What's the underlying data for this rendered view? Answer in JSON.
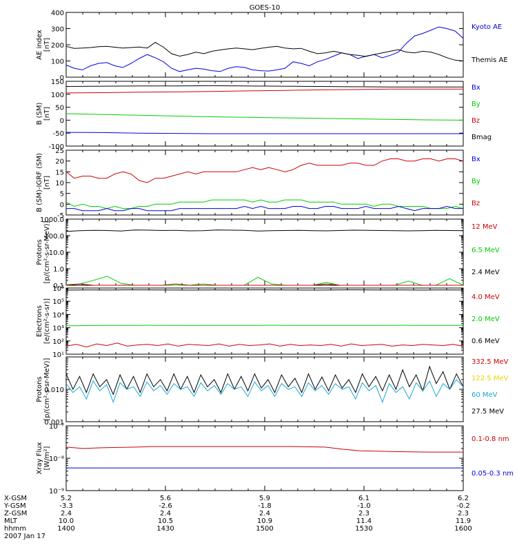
{
  "title": "GOES-10",
  "colors": {
    "black": "#000000",
    "blue": "#0000dd",
    "red": "#cc0000",
    "green": "#00cc00",
    "yellow": "#e6d600",
    "cyan": "#1aa7d6"
  },
  "chart_data": [
    {
      "type": "line",
      "ylabel": [
        "AE index",
        "[nT]"
      ],
      "yscale": "linear",
      "ylim": [
        0,
        400
      ],
      "yticks": [
        0,
        100,
        200,
        300,
        400
      ],
      "ytick_labels": [
        "0",
        "100",
        "200",
        "300",
        "400"
      ],
      "legend": [
        {
          "label": "Kyoto AE",
          "color": "#0000dd"
        },
        {
          "label": "Themis AE",
          "color": "#000000"
        }
      ],
      "series": [
        {
          "name": "Kyoto AE",
          "color": "#0000dd",
          "values": [
            75,
            55,
            45,
            70,
            85,
            90,
            70,
            60,
            85,
            115,
            140,
            120,
            95,
            55,
            35,
            45,
            55,
            50,
            40,
            35,
            55,
            65,
            60,
            45,
            40,
            38,
            45,
            55,
            95,
            85,
            70,
            95,
            110,
            130,
            150,
            140,
            115,
            130,
            140,
            120,
            135,
            155,
            210,
            255,
            270,
            290,
            310,
            300,
            285,
            240
          ]
        },
        {
          "name": "Themis AE",
          "color": "#000000",
          "values": [
            190,
            178,
            180,
            183,
            188,
            190,
            185,
            180,
            183,
            186,
            180,
            215,
            185,
            145,
            130,
            140,
            155,
            145,
            160,
            168,
            175,
            180,
            175,
            170,
            178,
            185,
            190,
            180,
            175,
            178,
            160,
            145,
            150,
            160,
            150,
            140,
            135,
            128,
            140,
            150,
            160,
            170,
            155,
            150,
            160,
            155,
            140,
            120,
            105,
            100
          ]
        }
      ]
    },
    {
      "type": "line",
      "ylabel": [
        "B (SM)",
        "[nT]"
      ],
      "yscale": "linear",
      "ylim": [
        -100,
        150
      ],
      "yticks": [
        -100,
        -50,
        0,
        50,
        100,
        150
      ],
      "ytick_labels": [
        "-100",
        "-50",
        "0",
        "50",
        "100",
        "150"
      ],
      "legend": [
        {
          "label": "Bx",
          "color": "#0000dd"
        },
        {
          "label": "By",
          "color": "#00cc00"
        },
        {
          "label": "Bz",
          "color": "#cc0000"
        },
        {
          "label": "Bmag",
          "color": "#000000"
        }
      ],
      "series": [
        {
          "name": "Bmag",
          "color": "#000000",
          "values": [
            130,
            131,
            132,
            132,
            133,
            132,
            131,
            130,
            129,
            128,
            128,
            128
          ]
        },
        {
          "name": "Bz",
          "color": "#cc0000",
          "values": [
            105,
            106,
            108,
            109,
            111,
            113,
            115,
            117,
            118,
            120,
            120,
            120
          ]
        },
        {
          "name": "By",
          "color": "#00cc00",
          "values": [
            25,
            22,
            19,
            16,
            13,
            11,
            9,
            7,
            5,
            3,
            1,
            0
          ]
        },
        {
          "name": "Bx",
          "color": "#0000dd",
          "values": [
            -47,
            -48,
            -50,
            -51,
            -52,
            -52,
            -52,
            -52,
            -52,
            -52,
            -52,
            -52
          ]
        }
      ]
    },
    {
      "type": "line",
      "ylabel": [
        "B (SM)-IGRF (SM)",
        "[nT]"
      ],
      "yscale": "linear",
      "ylim": [
        -5,
        25
      ],
      "yticks": [
        -5,
        0,
        5,
        10,
        15,
        20,
        25
      ],
      "ytick_labels": [
        "-5",
        "0",
        "5",
        "10",
        "15",
        "20",
        "25"
      ],
      "legend": [
        {
          "label": "Bx",
          "color": "#0000dd"
        },
        {
          "label": "By",
          "color": "#00cc00"
        },
        {
          "label": "Bz",
          "color": "#cc0000"
        }
      ],
      "series": [
        {
          "name": "Bz",
          "color": "#cc0000",
          "values": [
            15,
            12,
            13,
            13,
            12,
            12,
            14,
            15,
            14,
            11,
            10,
            12,
            12,
            13,
            14,
            15,
            14,
            15,
            15,
            15,
            15,
            15,
            16,
            17,
            16,
            17,
            16,
            15,
            16,
            18,
            19,
            18,
            18,
            18,
            18,
            19,
            19,
            18,
            18,
            20,
            21,
            21,
            20,
            20,
            21,
            21,
            20,
            21,
            21,
            20
          ]
        },
        {
          "name": "By",
          "color": "#00cc00",
          "values": [
            1,
            -1,
            0,
            -1,
            -1,
            -2,
            -1,
            -2,
            -2,
            -1,
            -1,
            0,
            0,
            0,
            1,
            1,
            1,
            1,
            2,
            2,
            2,
            2,
            2,
            1,
            2,
            1,
            1,
            2,
            2,
            2,
            1,
            1,
            1,
            1,
            0,
            0,
            0,
            0,
            -1,
            0,
            0,
            -1,
            -1,
            -1,
            -1,
            -2,
            -2,
            -2,
            -1,
            -2
          ]
        },
        {
          "name": "Bx",
          "color": "#0000dd",
          "values": [
            -2,
            -2,
            -3,
            -3,
            -3,
            -2,
            -3,
            -3,
            -2,
            -2,
            -3,
            -3,
            -3,
            -3,
            -2,
            -2,
            -2,
            -2,
            -2,
            -2,
            -2,
            -2,
            -1,
            -2,
            -1,
            -2,
            -2,
            -2,
            -1,
            -1,
            -2,
            -2,
            -1,
            -1,
            -2,
            -2,
            -2,
            -1,
            -2,
            -2,
            -2,
            -1,
            -2,
            -3,
            -2,
            -2,
            -2,
            -1,
            -2,
            -2
          ]
        }
      ]
    },
    {
      "type": "line",
      "ylabel": [
        "Protons",
        "[p/(cm²-s-sr-MeV)]"
      ],
      "yscale": "log",
      "ylim": [
        0.1,
        1000
      ],
      "yticks": [
        0.1,
        1,
        10,
        100,
        1000
      ],
      "ytick_labels": [
        "0.1",
        "1.0",
        "10.0",
        "100.0",
        "1000.0"
      ],
      "legend": [
        {
          "label": "12 MeV",
          "color": "#cc0000"
        },
        {
          "label": "6.5 MeV",
          "color": "#00cc00"
        },
        {
          "label": "2.4 MeV",
          "color": "#000000"
        }
      ],
      "series": [
        {
          "name": "2.4 MeV",
          "color": "#000000",
          "values": [
            180,
            200,
            210,
            205,
            190,
            220,
            215,
            205,
            210,
            195,
            200,
            220,
            215,
            210,
            190,
            200,
            205,
            210,
            200,
            195,
            205,
            215,
            210,
            205,
            200,
            195,
            200,
            210,
            205,
            200
          ]
        },
        {
          "name": "6.5 MeV",
          "color": "#00cc00",
          "values": [
            0.11,
            0.12,
            0.2,
            0.35,
            0.13,
            0.1,
            0.1,
            0.1,
            0.1,
            0.1,
            0.12,
            0.1,
            0.1,
            0.1,
            0.3,
            0.12,
            0.1,
            0.1,
            0.1,
            0.15,
            0.1,
            0.1,
            0.1,
            0.1,
            0.1,
            0.18,
            0.1,
            0.1,
            0.25,
            0.1
          ]
        },
        {
          "name": "12 MeV",
          "color": "#cc0000",
          "values": [
            0.1,
            0.12,
            0.1,
            0.1,
            0.1,
            0.1,
            0.1,
            0.1,
            0.12,
            0.1,
            0.1,
            0.1,
            0.1,
            0.1,
            0.1,
            0.1,
            0.1,
            0.1,
            0.1,
            0.12,
            0.1,
            0.1,
            0.1,
            0.1,
            0.1,
            0.1,
            0.1,
            0.1,
            0.1,
            0.1
          ]
        }
      ]
    },
    {
      "type": "line",
      "ylabel": [
        "Electrons",
        "[e/(cm²-s-sr)]"
      ],
      "yscale": "log",
      "ylim": [
        10,
        1000000
      ],
      "yticks": [
        10,
        100,
        1000,
        10000,
        100000,
        1000000
      ],
      "ytick_labels": [
        "10¹",
        "10²",
        "10³",
        "10⁴",
        "10⁵",
        "10⁶"
      ],
      "legend": [
        {
          "label": "4.0 MeV",
          "color": "#cc0000"
        },
        {
          "label": "2.0 MeV",
          "color": "#00cc00"
        },
        {
          "label": "0.6 MeV",
          "color": "#000000"
        }
      ],
      "series": [
        {
          "name": "0.6 MeV",
          "color": "#000000",
          "values": [
            700000,
            720000,
            710000,
            730000,
            720000,
            710000,
            700000,
            720000,
            710000,
            730000,
            720000,
            710000,
            700000,
            720000,
            730000,
            710000,
            720000,
            700000,
            720000,
            710000
          ]
        },
        {
          "name": "2.0 MeV",
          "color": "#00cc00",
          "values": [
            1400,
            1450,
            1500,
            1480,
            1520,
            1500,
            1470,
            1500,
            1480,
            1500,
            1520,
            1490,
            1510,
            1500,
            1480,
            1500,
            1520,
            1500,
            1490,
            1500
          ]
        },
        {
          "name": "4.0 MeV",
          "color": "#cc0000",
          "values": [
            40,
            55,
            35,
            60,
            45,
            70,
            40,
            50,
            55,
            45,
            60,
            40,
            55,
            50,
            45,
            60,
            40,
            55,
            45,
            50,
            60,
            40,
            55,
            45,
            50,
            45,
            55,
            40,
            60,
            45,
            50,
            55,
            40,
            50,
            45,
            55,
            50,
            45,
            55,
            40
          ]
        }
      ]
    },
    {
      "type": "line",
      "ylabel": [
        "Protons",
        "[p/(cm²-s-sr-MeV)]"
      ],
      "yscale": "log",
      "ylim": [
        0.001,
        0.1
      ],
      "yticks": [
        0.001,
        0.01
      ],
      "ytick_labels": [
        "0.001",
        "0.010"
      ],
      "legend": [
        {
          "label": "332.5 MeV",
          "color": "#cc0000"
        },
        {
          "label": "122.5 MeV",
          "color": "#e6d600"
        },
        {
          "label": "60 MeV",
          "color": "#1aa7d6"
        },
        {
          "label": "27.5 MeV",
          "color": "#000000"
        }
      ],
      "series": [
        {
          "name": "27.5 MeV",
          "color": "#000000",
          "values": [
            0.03,
            0.01,
            0.025,
            0.008,
            0.03,
            0.012,
            0.02,
            0.007,
            0.028,
            0.01,
            0.025,
            0.008,
            0.03,
            0.012,
            0.02,
            0.009,
            0.03,
            0.01,
            0.025,
            0.008,
            0.028,
            0.012,
            0.02,
            0.008,
            0.03,
            0.01,
            0.025,
            0.009,
            0.03,
            0.011,
            0.02,
            0.008,
            0.028,
            0.012,
            0.022,
            0.008,
            0.03,
            0.01,
            0.024,
            0.009,
            0.028,
            0.011,
            0.02,
            0.008,
            0.03,
            0.012,
            0.025,
            0.009,
            0.028,
            0.01,
            0.04,
            0.012,
            0.028,
            0.009,
            0.05,
            0.015,
            0.035,
            0.01,
            0.03,
            0.012
          ]
        },
        {
          "name": "60 MeV",
          "color": "#1aa7d6",
          "values": [
            0.015,
            0.008,
            0.012,
            0.005,
            0.018,
            0.009,
            0.014,
            0.004,
            0.016,
            0.01,
            0.012,
            0.006,
            0.017,
            0.009,
            0.013,
            0.007,
            0.015,
            0.01,
            0.012,
            0.006,
            0.016,
            0.009,
            0.013,
            0.007,
            0.015,
            0.01,
            0.012,
            0.006,
            0.017,
            0.009,
            0.013,
            0.006,
            0.015,
            0.01,
            0.012,
            0.006,
            0.016,
            0.009,
            0.013,
            0.007,
            0.015,
            0.01,
            0.012,
            0.005,
            0.016,
            0.009,
            0.013,
            0.004,
            0.015,
            0.008,
            0.012,
            0.005,
            0.016,
            0.009,
            0.018,
            0.006,
            0.015,
            0.01,
            0.02,
            0.012
          ]
        }
      ]
    },
    {
      "type": "line",
      "ylabel": [
        "Xray Flux",
        "[W/m²]"
      ],
      "yscale": "log",
      "ylim": [
        1e-09,
        1e-07
      ],
      "yticks": [
        1e-09,
        1e-08,
        1e-07
      ],
      "ytick_labels": [
        "10⁻⁹",
        "10⁻⁸",
        "10⁻⁷"
      ],
      "legend": [
        {
          "label": "0.1-0.8 nm",
          "color": "#cc0000"
        },
        {
          "label": "0.05-0.3 nm",
          "color": "#0000dd"
        }
      ],
      "series": [
        {
          "name": "0.1-0.8 nm",
          "color": "#cc0000",
          "values": [
            2.2e-08,
            2e-08,
            2.1e-08,
            2.15e-08,
            2.2e-08,
            2.3e-08,
            2.3e-08,
            2.3e-08,
            2.3e-08,
            2.3e-08,
            2.3e-08,
            2.3e-08,
            2.3e-08,
            2.3e-08,
            2.25e-08,
            2.2e-08,
            1.9e-08,
            1.7e-08,
            1.65e-08,
            1.6e-08,
            1.58e-08,
            1.55e-08,
            1.55e-08,
            1.55e-08
          ]
        },
        {
          "name": "0.05-0.3 nm",
          "color": "#0000dd",
          "values": [
            5e-09,
            5e-09,
            5e-09,
            5e-09,
            5e-09,
            5e-09,
            5e-09,
            5e-09,
            5e-09,
            5e-09,
            5e-09,
            5e-09
          ]
        }
      ]
    }
  ],
  "x_axis": {
    "rows": [
      {
        "label": "X-GSM",
        "values": [
          "5.2",
          "5.6",
          "5.9",
          "6.1",
          "6.2"
        ]
      },
      {
        "label": "Y-GSM",
        "values": [
          "-3.3",
          "-2.6",
          "-1.8",
          "-1.0",
          "-0.2"
        ]
      },
      {
        "label": "Z-GSM",
        "values": [
          "2.4",
          "2.4",
          "2.4",
          "2.3",
          "2.3"
        ]
      },
      {
        "label": "MLT",
        "values": [
          "10.0",
          "10.5",
          "10.9",
          "11.4",
          "11.9"
        ]
      },
      {
        "label": "hhmm",
        "values": [
          "1400",
          "1430",
          "1500",
          "1530",
          "1600"
        ]
      }
    ],
    "date": "2007 Jan 17"
  }
}
